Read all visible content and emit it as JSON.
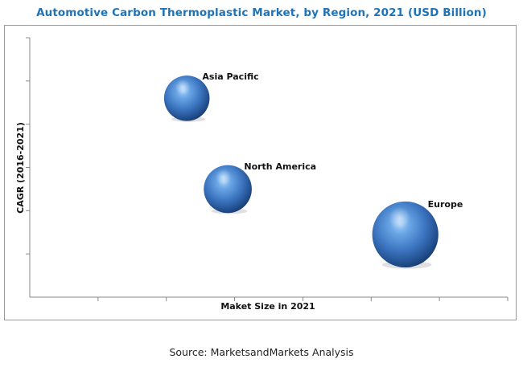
{
  "title": "Automotive Carbon Thermoplastic Market, by Region, 2021 (USD Billion)",
  "source": "Source: MarketsandMarkets Analysis",
  "chart_data": {
    "type": "scatter",
    "subtype": "bubble",
    "title": "Automotive Carbon Thermoplastic Market, by Region, 2021 (USD Billion)",
    "xlabel": "Maket Size in 2021",
    "ylabel": "CAGR (2016-2021)",
    "x_tick_labels": false,
    "y_tick_labels": false,
    "xlim": [
      0,
      7
    ],
    "ylim": [
      0,
      6
    ],
    "x_ticks": 7,
    "y_ticks": 6,
    "grid": false,
    "legend": "none",
    "bubble_color": "#3f7fcc",
    "series": [
      {
        "name": "Asia Pacific",
        "x": 2.3,
        "y": 4.6,
        "size": 0.9
      },
      {
        "name": "North America",
        "x": 2.9,
        "y": 2.5,
        "size": 1.0
      },
      {
        "name": "Europe",
        "x": 5.5,
        "y": 1.45,
        "size": 1.9
      }
    ]
  }
}
